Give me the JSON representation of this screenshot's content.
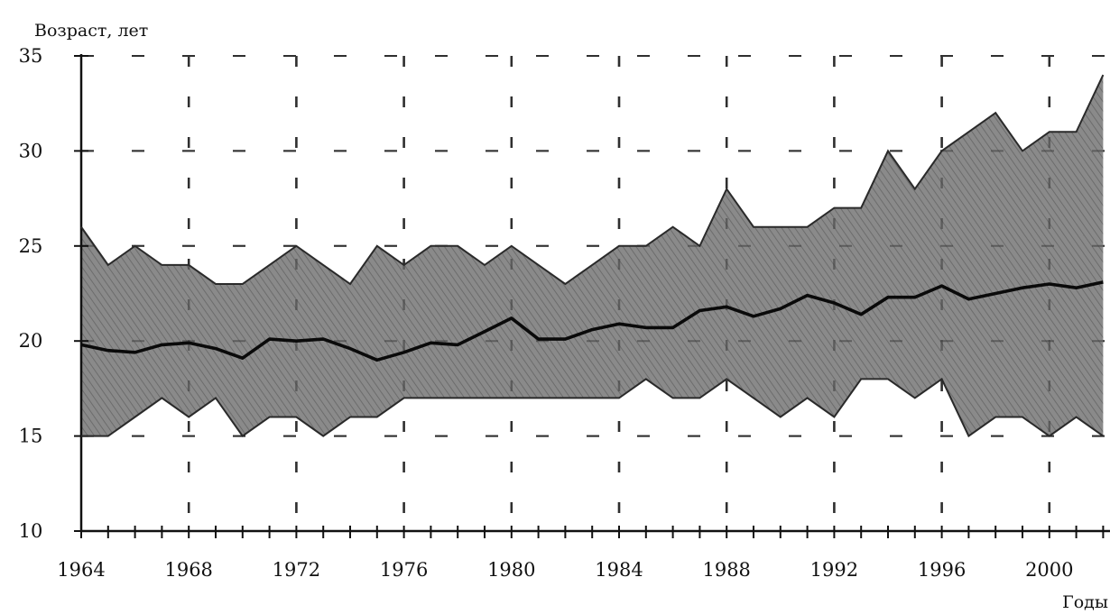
{
  "chart_data": {
    "type": "area",
    "title": "",
    "ylabel": "Возраст, лет",
    "xlabel": "Годы",
    "ylim": [
      10,
      35
    ],
    "xlim": [
      1964,
      2002
    ],
    "y_ticks": [
      10,
      15,
      20,
      25,
      30,
      35
    ],
    "x_ticks": [
      1964,
      1968,
      1972,
      1976,
      1980,
      1984,
      1988,
      1992,
      1996,
      2000
    ],
    "grid": "dashed",
    "x": [
      1964,
      1965,
      1966,
      1967,
      1968,
      1969,
      1970,
      1971,
      1972,
      1973,
      1974,
      1975,
      1976,
      1977,
      1978,
      1979,
      1980,
      1981,
      1982,
      1983,
      1984,
      1985,
      1986,
      1987,
      1988,
      1989,
      1990,
      1991,
      1992,
      1993,
      1994,
      1995,
      1996,
      1997,
      1998,
      1999,
      2000,
      2001,
      2002
    ],
    "series": [
      {
        "role": "upper_bound",
        "values": [
          26,
          24,
          25,
          24,
          24,
          23,
          23,
          24,
          25,
          24,
          23,
          25,
          24,
          25,
          25,
          24,
          25,
          24,
          23,
          24,
          25,
          25,
          26,
          25,
          28,
          26,
          26,
          26,
          27,
          27,
          30,
          28,
          30,
          31,
          32,
          30,
          31,
          31,
          34
        ]
      },
      {
        "role": "lower_bound",
        "values": [
          15,
          15,
          16,
          17,
          16,
          17,
          15,
          16,
          16,
          15,
          16,
          16,
          17,
          17,
          17,
          17,
          17,
          17,
          17,
          17,
          17,
          18,
          17,
          17,
          18,
          17,
          16,
          17,
          16,
          18,
          18,
          17,
          18,
          15,
          16,
          16,
          15,
          16,
          15
        ]
      },
      {
        "role": "mean",
        "values": [
          19.8,
          19.5,
          19.4,
          19.8,
          19.9,
          19.6,
          19.1,
          20.1,
          20.0,
          20.1,
          19.6,
          19.0,
          19.4,
          19.9,
          19.8,
          20.5,
          21.2,
          20.1,
          20.1,
          20.6,
          20.9,
          20.7,
          20.7,
          21.6,
          21.8,
          21.3,
          21.7,
          22.4,
          22.0,
          21.4,
          22.3,
          22.3,
          22.9,
          22.2,
          22.5,
          22.8,
          23.0,
          22.8,
          23.1
        ]
      }
    ],
    "colors": {
      "band": "#7d7d7d",
      "band_edge": "#2a2a2a",
      "mean_line": "#0a0a0a",
      "axis": "#111111",
      "grid": "#222222"
    }
  }
}
